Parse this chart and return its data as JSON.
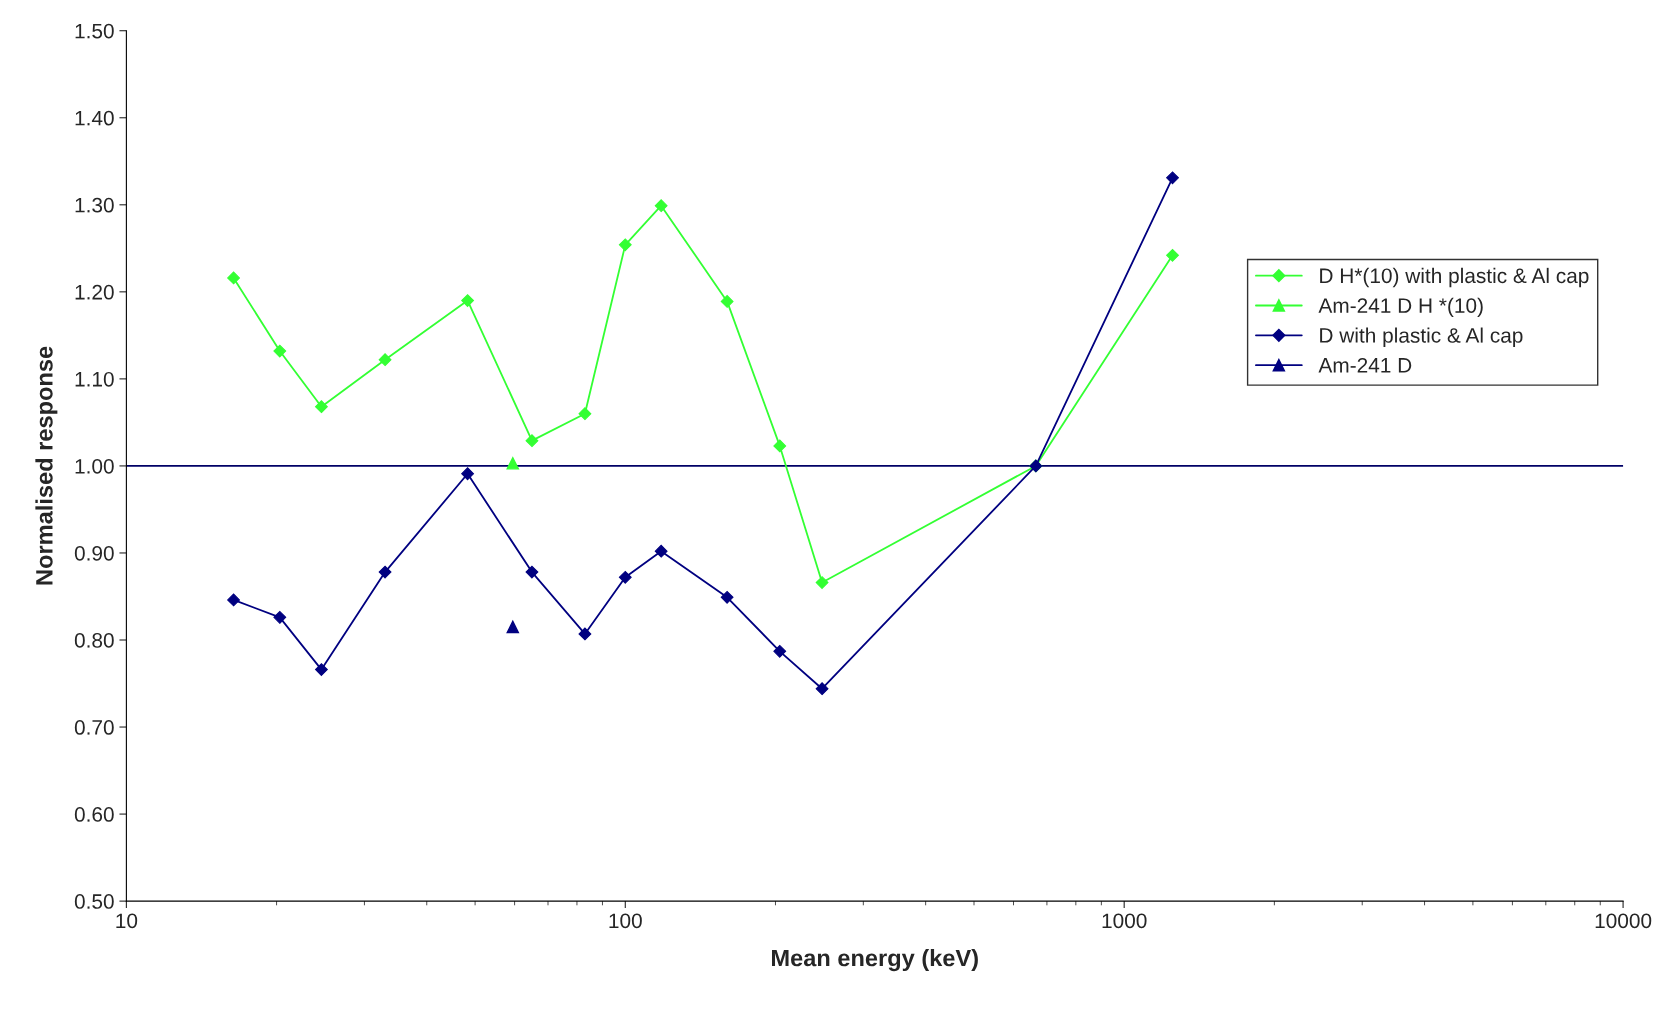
{
  "chart_data": {
    "type": "line",
    "xlabel": "Mean energy (keV)",
    "ylabel": "Normalised response",
    "log": "x",
    "xlim": [
      10,
      10000
    ],
    "xticks": [
      10,
      100,
      1000,
      10000
    ],
    "ylim": [
      0.5,
      1.5
    ],
    "yticks": [
      {
        "value": 0.5,
        "label": "0.50"
      },
      {
        "value": 0.6,
        "label": "0.60"
      },
      {
        "value": 0.7,
        "label": "0.70"
      },
      {
        "value": 0.8,
        "label": "0.80"
      },
      {
        "value": 0.9,
        "label": "0.90"
      },
      {
        "value": 1.0,
        "label": "1.00"
      },
      {
        "value": 1.1,
        "label": "1.10"
      },
      {
        "value": 1.2,
        "label": "1.20"
      },
      {
        "value": 1.3,
        "label": "1.30"
      },
      {
        "value": 1.4,
        "label": "1.40"
      },
      {
        "value": 1.5,
        "label": "1.50"
      }
    ],
    "grid": false,
    "legend": "right",
    "ref_lines": [
      {
        "axis": "y",
        "value": 1.0,
        "color": "#000066"
      }
    ],
    "series": [
      {
        "name": "D H*(10) with plastic & Al cap",
        "marker": "diamond",
        "color": "#33ff33",
        "x": [
          16.4,
          20.3,
          24.6,
          33,
          48.3,
          65,
          83,
          100,
          118,
          160,
          204,
          248,
          665,
          1250
        ],
        "values": [
          1.216,
          1.132,
          1.068,
          1.122,
          1.19,
          1.029,
          1.06,
          1.254,
          1.299,
          1.189,
          1.023,
          0.866,
          1.0,
          1.242
        ]
      },
      {
        "name": "Am-241 D H *(10)",
        "type": "scatter",
        "marker": "triangle",
        "color": "#33ff33",
        "x": [
          59.5
        ],
        "values": [
          1.003
        ]
      },
      {
        "name": "D with plastic & Al cap",
        "marker": "diamond",
        "color": "#000080",
        "x": [
          16.4,
          20.3,
          24.6,
          33,
          48.3,
          65,
          83,
          100,
          118,
          160,
          204,
          248,
          665,
          1250
        ],
        "values": [
          0.846,
          0.826,
          0.766,
          0.878,
          0.991,
          0.878,
          0.807,
          0.872,
          0.902,
          0.849,
          0.787,
          0.744,
          1.0,
          1.331
        ]
      },
      {
        "name": "Am-241 D",
        "type": "scatter",
        "marker": "triangle",
        "color": "#000080",
        "x": [
          59.5
        ],
        "values": [
          0.815
        ]
      }
    ]
  }
}
